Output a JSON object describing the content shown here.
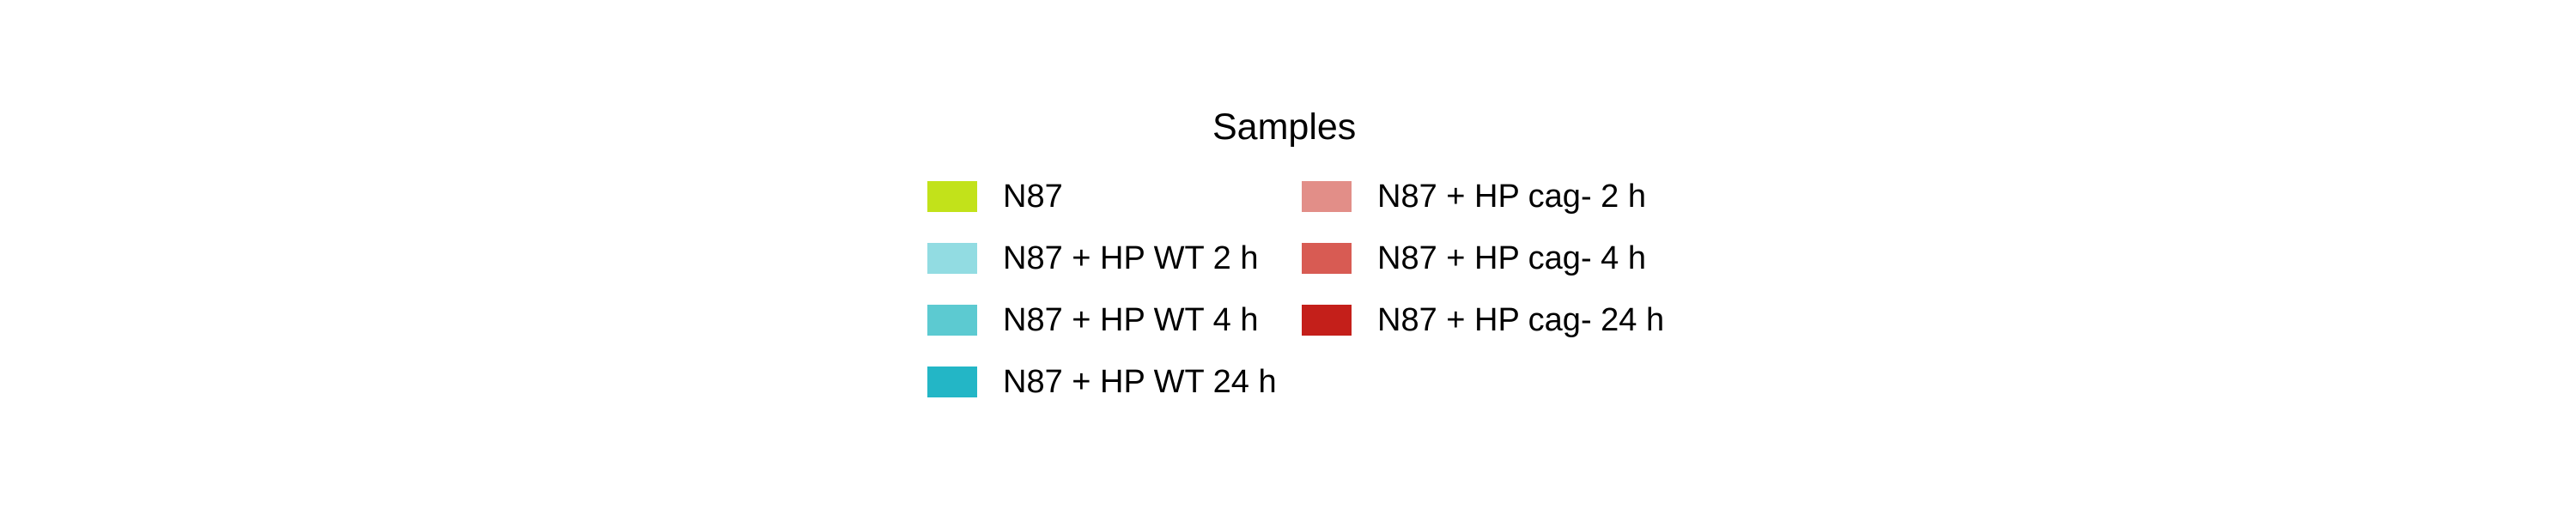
{
  "chart_data": {
    "type": "legend",
    "title": "Samples",
    "legend": {
      "columns": [
        [
          {
            "label": "N87",
            "color": "#c2e21a"
          },
          {
            "label": "N87 + HP WT 2 h",
            "color": "#92dce2"
          },
          {
            "label": "N87 + HP WT 4 h",
            "color": "#5ccad1"
          },
          {
            "label": "N87 + HP WT 24 h",
            "color": "#23b6c6"
          }
        ],
        [
          {
            "label": "N87 + HP cag- 2 h",
            "color": "#e28e88"
          },
          {
            "label": "N87 + HP cag- 4 h",
            "color": "#d85b53"
          },
          {
            "label": "N87 + HP cag- 24 h",
            "color": "#c41f1a"
          }
        ]
      ]
    }
  }
}
